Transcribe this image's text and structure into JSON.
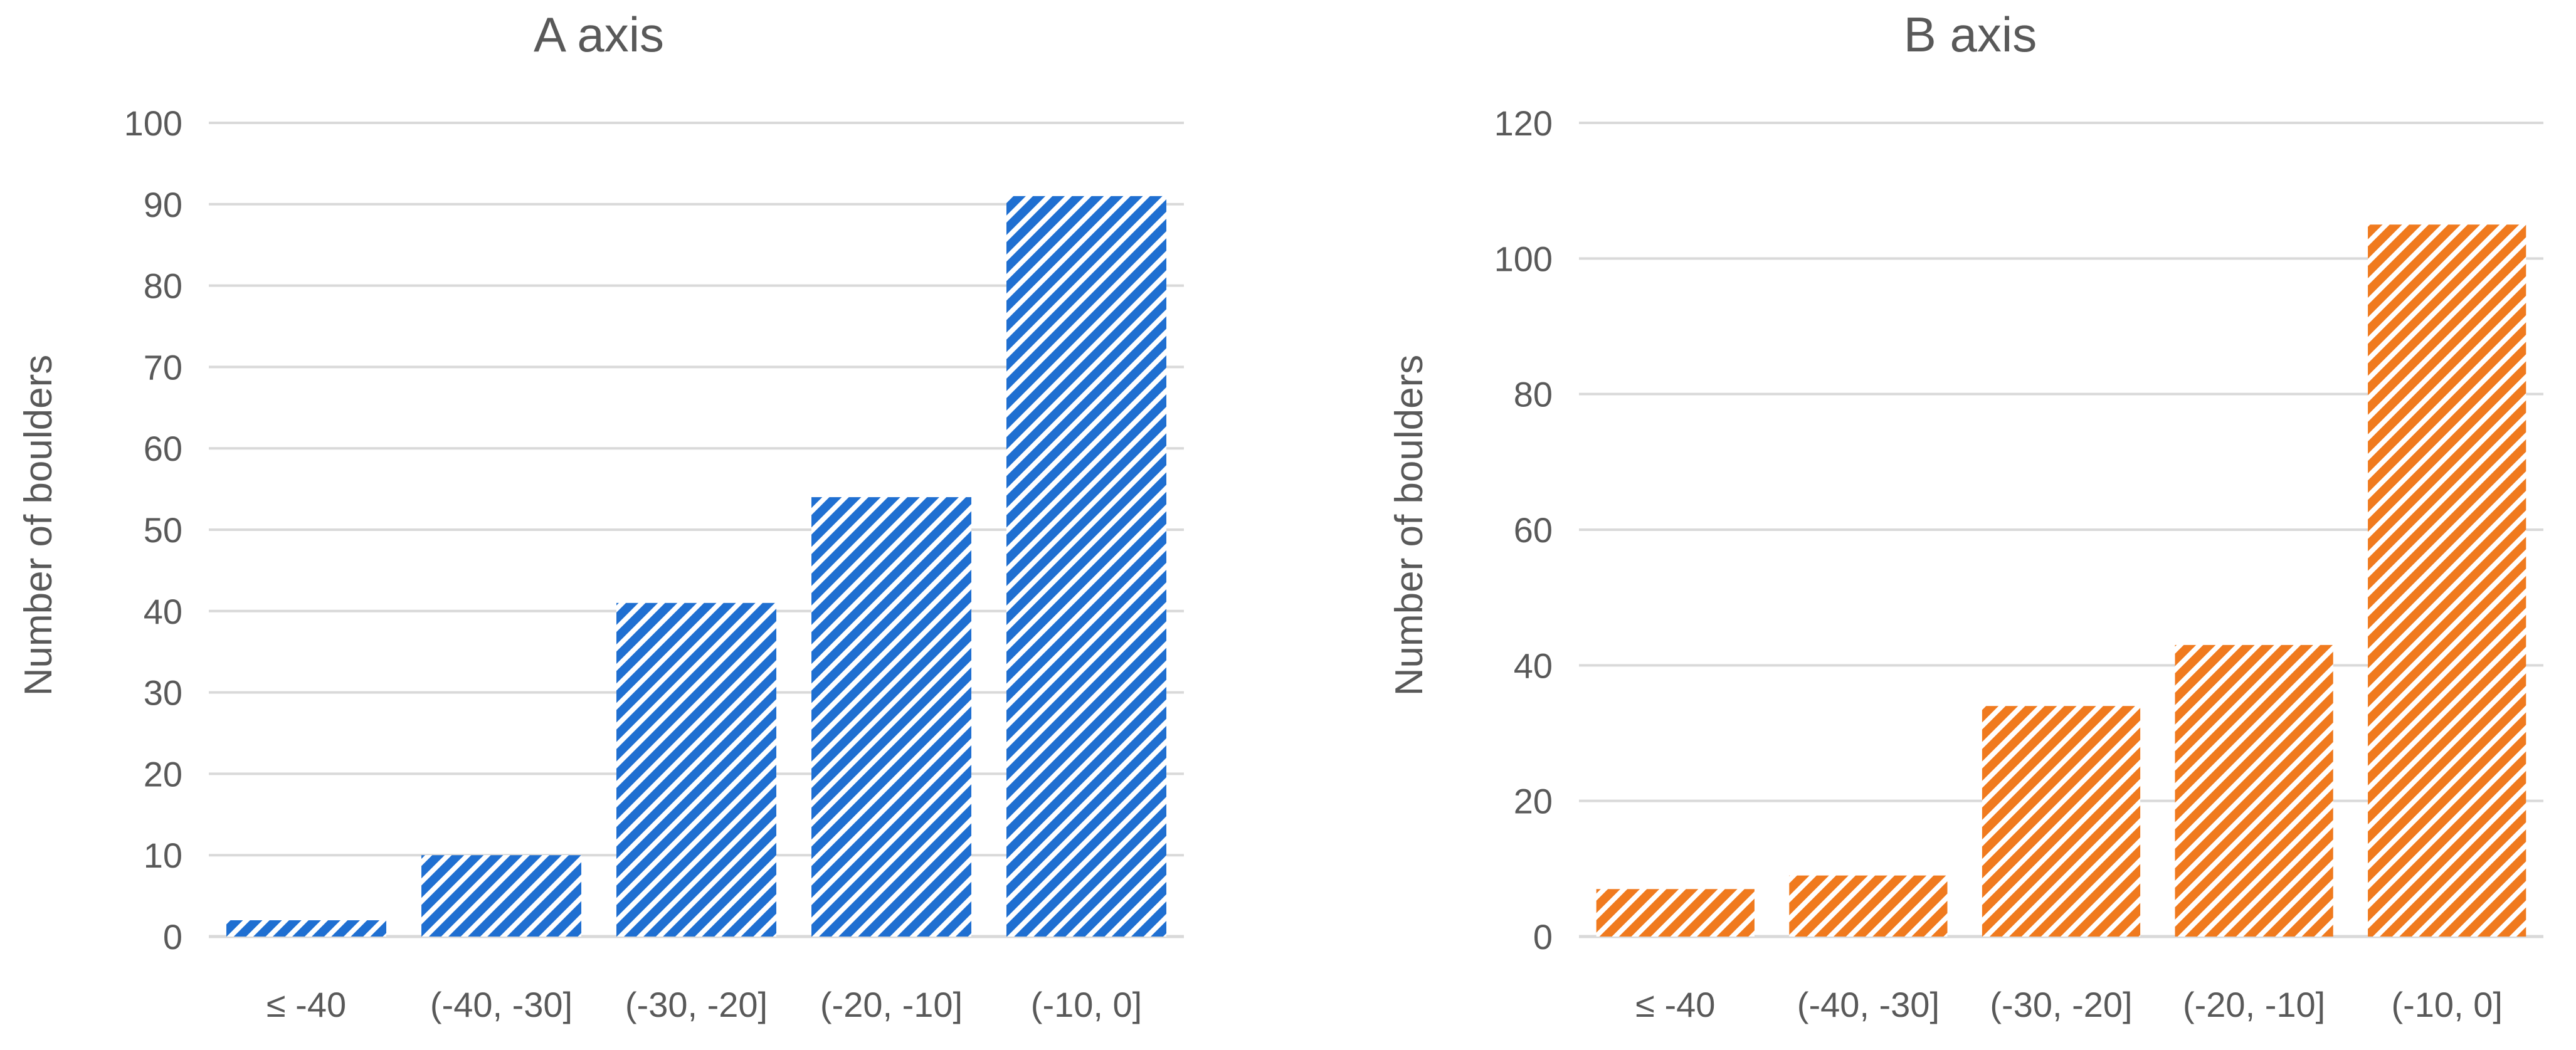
{
  "colors": {
    "series_a": "#1f6fd1",
    "series_b": "#f07a1e",
    "grid": "#d9d9d9",
    "text": "#595959"
  },
  "chart_data": [
    {
      "type": "bar",
      "title": "A axis",
      "xlabel": "",
      "ylabel": "Number of boulders",
      "categories": [
        "≤ -40",
        "(-40, -30]",
        "(-30, -20]",
        "(-20, -10]",
        "(-10, 0]"
      ],
      "values": [
        2,
        10,
        41,
        54,
        91
      ],
      "ylim": [
        0,
        100
      ],
      "yticks": [
        0,
        10,
        20,
        30,
        40,
        50,
        60,
        70,
        80,
        90,
        100
      ],
      "grid": true,
      "pattern": "diagonal-hatch",
      "color": "#1f6fd1"
    },
    {
      "type": "bar",
      "title": "B axis",
      "xlabel": "",
      "ylabel": "Number of boulders",
      "categories": [
        "≤ -40",
        "(-40, -30]",
        "(-30, -20]",
        "(-20, -10]",
        "(-10, 0]"
      ],
      "values": [
        7,
        9,
        34,
        43,
        105
      ],
      "ylim": [
        0,
        120
      ],
      "yticks": [
        0,
        20,
        40,
        60,
        80,
        100,
        120
      ],
      "grid": true,
      "pattern": "diagonal-hatch",
      "color": "#f07a1e"
    }
  ]
}
